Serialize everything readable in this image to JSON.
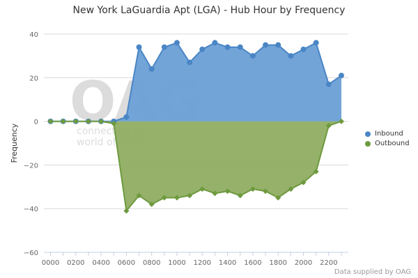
{
  "chart_data": {
    "type": "area",
    "title": "New York LaGuardia Apt (LGA) - Hub Hour by Frequency",
    "ylabel": "Frequency",
    "xlabel": "",
    "ylim": [
      -60,
      40
    ],
    "yticks": [
      -60,
      -40,
      -20,
      0,
      20,
      40
    ],
    "x": [
      "0000",
      "0100",
      "0200",
      "0300",
      "0400",
      "0500",
      "0600",
      "0700",
      "0800",
      "0900",
      "1000",
      "1100",
      "1200",
      "1300",
      "1400",
      "1500",
      "1600",
      "1700",
      "1800",
      "1900",
      "2000",
      "2100",
      "2200",
      "2300"
    ],
    "xtick_labels": [
      "0000",
      "0200",
      "0400",
      "0600",
      "0800",
      "1000",
      "1200",
      "1400",
      "1600",
      "1800",
      "2000",
      "2200"
    ],
    "grid": "horizontal",
    "legend_position": "right",
    "series": [
      {
        "name": "Inbound",
        "color": "#4a86c5",
        "marker": "circle",
        "values": [
          0,
          0,
          0,
          0,
          0,
          0,
          2,
          34,
          24,
          34,
          36,
          27,
          33,
          36,
          34,
          34,
          30,
          35,
          35,
          30,
          33,
          36,
          17,
          21
        ]
      },
      {
        "name": "Outbound",
        "color": "#6e9a3e",
        "marker": "diamond",
        "values": [
          0,
          0,
          0,
          0,
          0,
          -1,
          -41,
          -34,
          -38,
          -35,
          -35,
          -34,
          -31,
          -33,
          -32,
          -34,
          -31,
          -32,
          -35,
          -31,
          -28,
          -23,
          -2,
          0
        ]
      }
    ]
  },
  "watermark": {
    "logo": "OAG",
    "tagline_1": "connecting the",
    "tagline_2": "world of travel"
  },
  "credit": "Data supplied by OAG"
}
